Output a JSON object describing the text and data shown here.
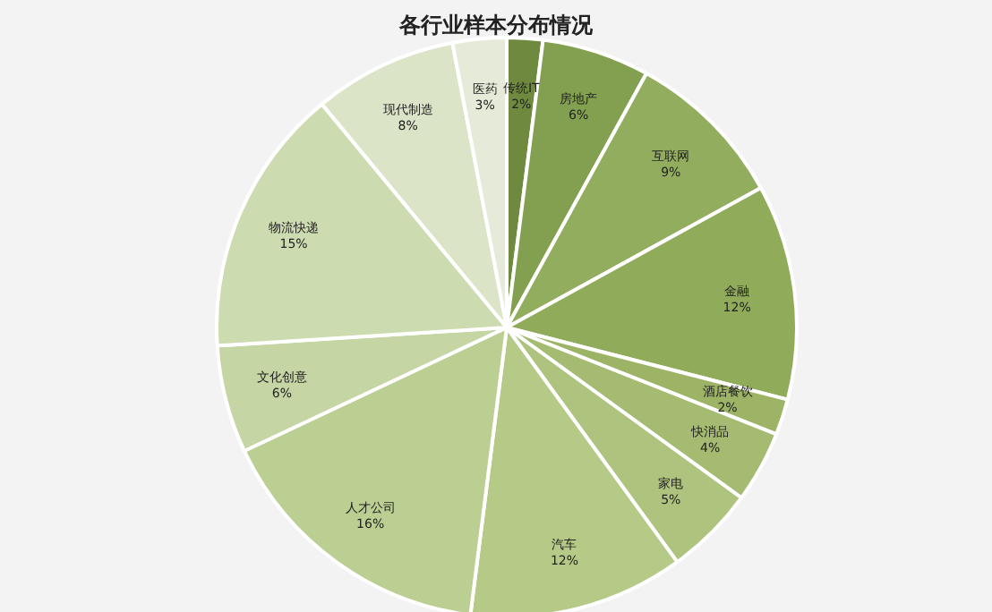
{
  "chart_data": {
    "type": "pie",
    "title": "各行业样本分布情况",
    "categories": [
      "传统IT",
      "房地产",
      "互联网",
      "金融",
      "酒店餐饮",
      "快消品",
      "家电",
      "汽车",
      "人才公司",
      "文化创意",
      "物流快递",
      "现代制造",
      "医药"
    ],
    "values": [
      2,
      6,
      9,
      12,
      2,
      4,
      5,
      12,
      16,
      6,
      15,
      8,
      3
    ],
    "colors": [
      "#6f8a3e",
      "#82a050",
      "#92ad5e",
      "#90ab5a",
      "#9db466",
      "#a5bb72",
      "#aec37e",
      "#b5ca86",
      "#bccf92",
      "#c5d5a4",
      "#cddbb0",
      "#dce4c8",
      "#e6ebd9"
    ],
    "value_labels": [
      "2%",
      "6%",
      "9%",
      "12%",
      "2%",
      "4%",
      "5%",
      "12%",
      "16%",
      "6%",
      "15%",
      "8%",
      "3%"
    ],
    "legend": false
  }
}
